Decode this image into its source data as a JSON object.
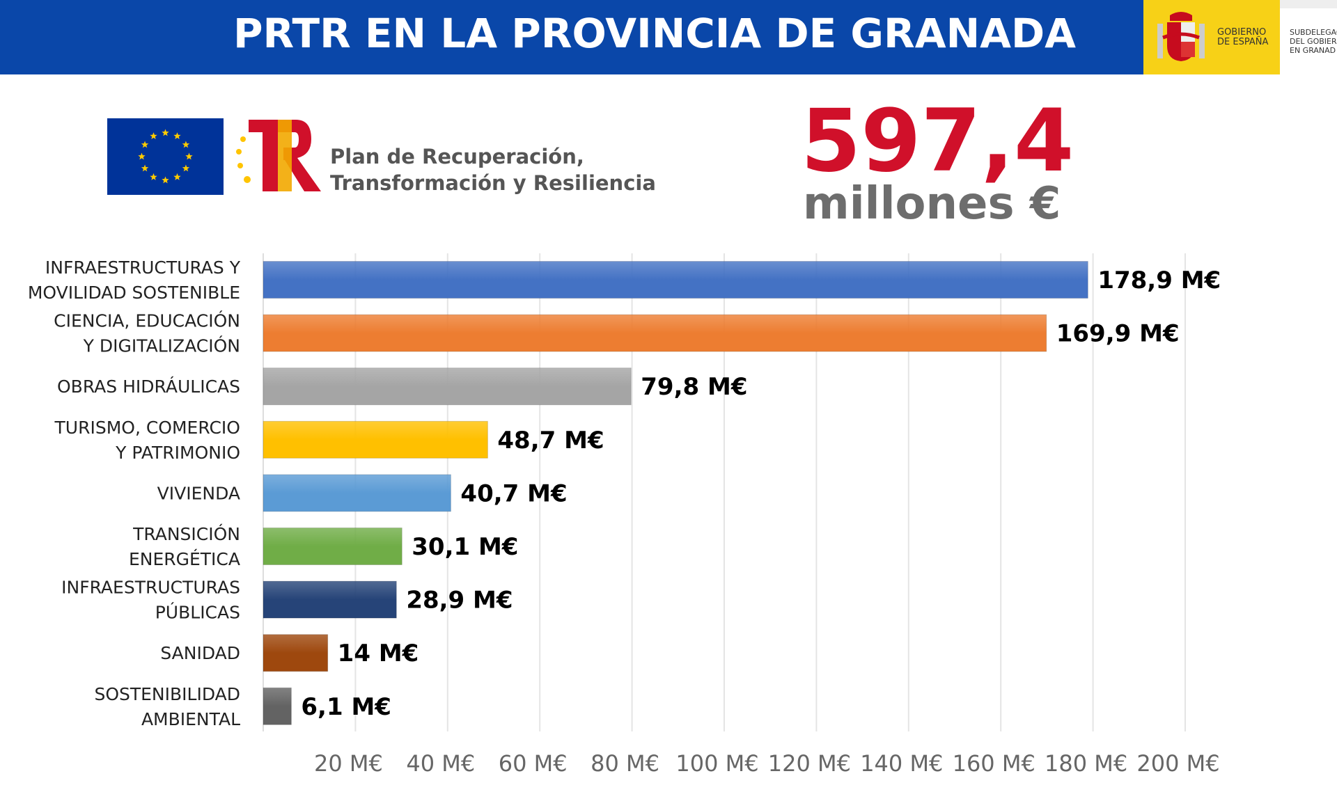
{
  "header": {
    "title": "PRTR EN LA PROVINCIA DE GRANADA",
    "gov_logo": "GOBIERNO DE ESPAÑA",
    "sub_logo": [
      "SUBDELEGAC",
      "DEL GOBIER",
      "EN GRANAD"
    ]
  },
  "plan": {
    "line1": "Plan de Recuperación,",
    "line2": "Transformación y Resiliencia"
  },
  "total": {
    "value": "597,4",
    "unit": "millones €"
  },
  "colors": {
    "header": "#0a47a9",
    "total": "#d0102a"
  },
  "chart_data": {
    "type": "bar",
    "orientation": "horizontal",
    "categories": [
      [
        "INFRAESTRUCTURAS Y",
        "MOVILIDAD SOSTENIBLE"
      ],
      [
        "CIENCIA, EDUCACIÓN",
        "Y DIGITALIZACIÓN"
      ],
      [
        "OBRAS HIDRÁULICAS"
      ],
      [
        "TURISMO, COMERCIO",
        "Y PATRIMONIO"
      ],
      [
        "VIVIENDA"
      ],
      [
        "TRANSICIÓN",
        "ENERGÉTICA"
      ],
      [
        "INFRAESTRUCTURAS",
        "PÚBLICAS"
      ],
      [
        "SANIDAD"
      ],
      [
        "SOSTENIBILIDAD",
        "AMBIENTAL"
      ]
    ],
    "values": [
      178.9,
      169.9,
      79.8,
      48.7,
      40.7,
      30.1,
      28.9,
      14,
      6.1
    ],
    "labels": [
      "178,9 M€",
      "169,9 M€",
      "79,8 M€",
      "48,7 M€",
      "40,7 M€",
      "30,1 M€",
      "28,9 M€",
      "14 M€",
      "6,1 M€"
    ],
    "bar_colors": [
      "#4472c4",
      "#ed7d31",
      "#a5a5a5",
      "#ffc000",
      "#5b9bd5",
      "#70ad47",
      "#264478",
      "#9e480e",
      "#636363"
    ],
    "xlim": [
      0,
      200
    ],
    "ticks": [
      "20 M€",
      "40 M€",
      "60 M€",
      "80 M€",
      "100 M€",
      "120 M€",
      "140 M€",
      "160 M€",
      "180 M€",
      "200 M€"
    ],
    "tick_values": [
      20,
      40,
      60,
      80,
      100,
      120,
      140,
      160,
      180,
      200
    ],
    "grid": true
  }
}
